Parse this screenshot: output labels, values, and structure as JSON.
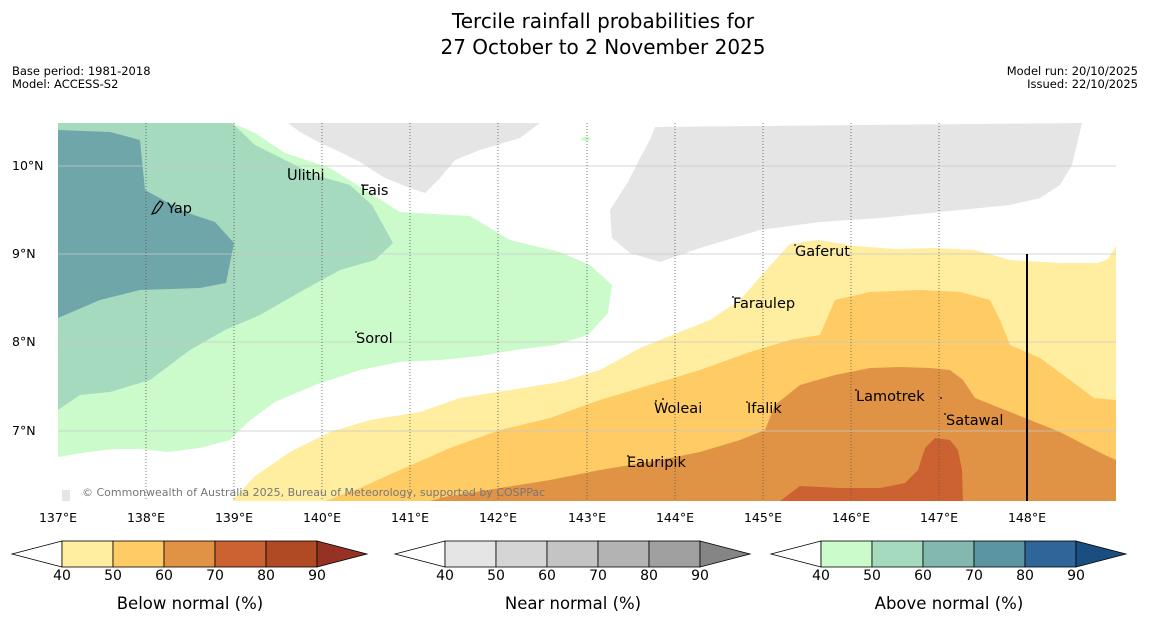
{
  "title": {
    "line1": "Tercile rainfall probabilities for",
    "line2": "27 October to 2 November 2025"
  },
  "meta": {
    "base_period": "Base period: 1981-2018",
    "model": "Model: ACCESS-S2",
    "model_run": "Model run: 20/10/2025",
    "issued": "Issued: 22/10/2025"
  },
  "map": {
    "latitudes": [
      "10°N",
      "9°N",
      "8°N",
      "7°N"
    ],
    "longitudes": [
      "137°E",
      "138°E",
      "139°E",
      "140°E",
      "141°E",
      "142°E",
      "143°E",
      "144°E",
      "145°E",
      "146°E",
      "147°E",
      "148°E"
    ],
    "places": [
      "Ulithi",
      "Fais",
      "Yap",
      "Gaferut",
      "Faraulep",
      "Sorol",
      "Lamotrek",
      "Woleai",
      "Ifalik",
      "Satawal",
      "Eauripik"
    ],
    "copyright": "© Commonwealth of Australia 2025, Bureau of Meteorology, supported by COSPPac"
  },
  "colorbars": {
    "ticks": [
      "40",
      "50",
      "60",
      "70",
      "80",
      "90"
    ],
    "below": {
      "label": "Below normal (%)",
      "colors": [
        "#ffeda0",
        "#fecb65",
        "#e09344",
        "#cc6232",
        "#b04a24",
        "#963224"
      ]
    },
    "near": {
      "label": "Near normal (%)",
      "colors": [
        "#e5e5e5",
        "#d5d5d5",
        "#c4c4c4",
        "#b3b3b3",
        "#a0a0a0",
        "#858585"
      ]
    },
    "above": {
      "label": "Above normal (%)",
      "colors": [
        "#ccfbcb",
        "#a6dabf",
        "#83b8b0",
        "#5b94a3",
        "#2f6699",
        "#1a4d80"
      ]
    }
  }
}
